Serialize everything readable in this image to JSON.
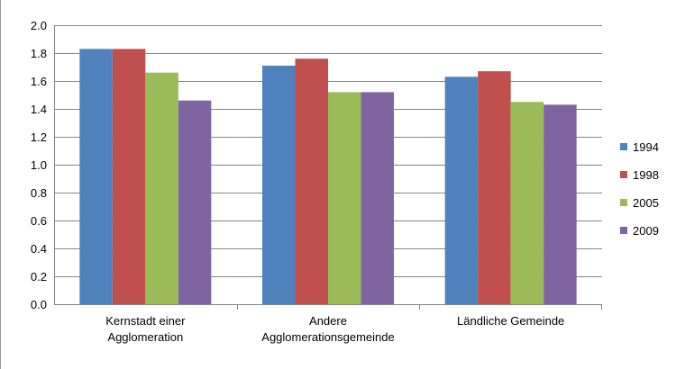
{
  "chart_data": {
    "type": "bar",
    "title": "",
    "xlabel": "",
    "ylabel": "",
    "categories": [
      [
        "Kernstadt einer",
        "Agglomeration"
      ],
      [
        "Andere",
        "Agglomerationsgemeinde"
      ],
      [
        "Ländliche Gemeinde"
      ]
    ],
    "series": [
      {
        "name": "1994",
        "color": "#4F81BD",
        "values": [
          1.83,
          1.71,
          1.63
        ]
      },
      {
        "name": "1998",
        "color": "#C0504D",
        "values": [
          1.83,
          1.76,
          1.67
        ]
      },
      {
        "name": "2005",
        "color": "#9BBB59",
        "values": [
          1.66,
          1.52,
          1.45
        ]
      },
      {
        "name": "2009",
        "color": "#8064A2",
        "values": [
          1.46,
          1.52,
          1.43
        ]
      }
    ],
    "ylim": [
      0,
      2.0
    ],
    "yticks": [
      "0.0",
      "0.2",
      "0.4",
      "0.6",
      "0.8",
      "1.0",
      "1.2",
      "1.4",
      "1.6",
      "1.8",
      "2.0"
    ],
    "grid": true,
    "legend_position": "right"
  }
}
